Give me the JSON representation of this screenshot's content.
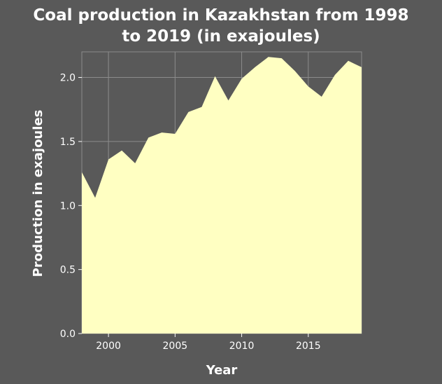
{
  "title_lines": [
    "Coal production in Kazakhstan from 1998",
    "to 2019 (in exajoules)"
  ],
  "colors": {
    "background": "#595959",
    "area_fill": "#ffffc2",
    "grid": "#8c8c8c",
    "text": "#ffffff"
  },
  "chart_data": {
    "type": "area",
    "title": "Coal production in Kazakhstan from 1998 to 2019 (in exajoules)",
    "xlabel": "Year",
    "ylabel": "Production in exajoules",
    "x": [
      1998,
      1999,
      2000,
      2001,
      2002,
      2003,
      2004,
      2005,
      2006,
      2007,
      2008,
      2009,
      2010,
      2011,
      2012,
      2013,
      2014,
      2015,
      2016,
      2017,
      2018,
      2019
    ],
    "series": [
      {
        "values": [
          1.26,
          1.06,
          1.36,
          1.43,
          1.33,
          1.53,
          1.57,
          1.56,
          1.73,
          1.77,
          2.01,
          1.82,
          1.99,
          2.08,
          2.16,
          2.15,
          2.05,
          1.93,
          1.85,
          2.02,
          2.13,
          2.08
        ]
      }
    ],
    "xlim": [
      1998,
      2019
    ],
    "ylim": [
      0,
      2.2
    ],
    "xticks": [
      2000,
      2005,
      2010,
      2015
    ],
    "xtick_labels": [
      "2000",
      "2005",
      "2010",
      "2015"
    ],
    "yticks": [
      0,
      0.5,
      1.0,
      1.5,
      2.0
    ],
    "ytick_labels": [
      "0.0",
      "0.5",
      "1.0",
      "1.5",
      "2.0"
    ],
    "grid": true,
    "legend": "none"
  }
}
